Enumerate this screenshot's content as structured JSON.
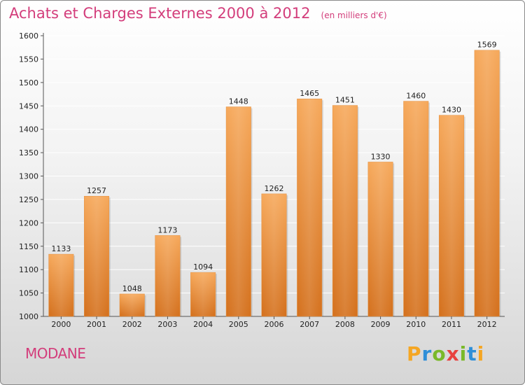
{
  "header": {
    "title": "Achats et Charges Externes 2000 à 2012",
    "subtitle": "(en milliers d'€)"
  },
  "commune": "MODANE",
  "logo": {
    "text": "Proxiti",
    "letter_colors": [
      "#f5a623",
      "#2f8fd8",
      "#7ab929",
      "#e8423f",
      "#7ab929",
      "#2f8fd8",
      "#f5a623"
    ]
  },
  "colors": {
    "bar_top": "#f6a85a",
    "bar_bottom": "#d4701c",
    "title": "#d33d7b",
    "grid": "#ffffff"
  },
  "chart_data": {
    "type": "bar",
    "title": "Achats et Charges Externes 2000 à 2012",
    "categories": [
      "2000",
      "2001",
      "2002",
      "2003",
      "2004",
      "2005",
      "2006",
      "2007",
      "2008",
      "2009",
      "2010",
      "2011",
      "2012"
    ],
    "values": [
      1133,
      1257,
      1048,
      1173,
      1094,
      1448,
      1262,
      1465,
      1451,
      1330,
      1460,
      1430,
      1569
    ],
    "ylim": [
      1000,
      1600
    ],
    "yticks": [
      1000,
      1050,
      1100,
      1150,
      1200,
      1250,
      1300,
      1350,
      1400,
      1450,
      1500,
      1550,
      1600
    ],
    "grid": true,
    "xlabel": "",
    "ylabel": ""
  }
}
